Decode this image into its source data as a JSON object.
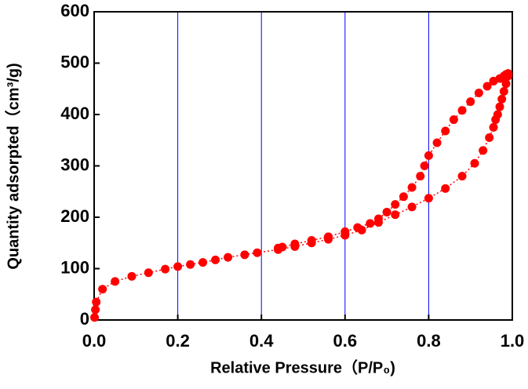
{
  "chart_data": {
    "type": "scatter",
    "xlabel": "Relative Pressure（P/P₀)",
    "ylabel": "Quantity adsorpted（cm³/g)",
    "xlim": [
      0,
      1
    ],
    "ylim": [
      0,
      600
    ],
    "xticks": [
      {
        "value": 0,
        "label": "0.0"
      },
      0.2,
      0.4,
      0.6,
      0.8,
      {
        "value": 1,
        "label": "1.0"
      }
    ],
    "yticks": [
      0,
      100,
      200,
      300,
      400,
      500,
      600
    ],
    "grid": "x",
    "grid_color": "#0000ff",
    "series": [
      {
        "color": "#ff0000",
        "x": [
          0.001,
          0.003,
          0.005,
          0.02,
          0.05,
          0.09,
          0.13,
          0.17,
          0.2,
          0.23,
          0.26,
          0.29,
          0.32,
          0.36,
          0.39,
          0.44,
          0.48,
          0.52,
          0.56,
          0.6,
          0.64,
          0.68,
          0.72,
          0.76,
          0.8,
          0.84,
          0.88,
          0.91,
          0.93,
          0.945,
          0.955,
          0.96,
          0.965,
          0.97,
          0.975,
          0.98,
          0.985,
          0.99
        ],
        "values": [
          5,
          20,
          35,
          60,
          75,
          85,
          92,
          99,
          104,
          108,
          112,
          117,
          122,
          127,
          131,
          137,
          143,
          150,
          157,
          165,
          175,
          190,
          205,
          220,
          237,
          256,
          280,
          305,
          330,
          355,
          375,
          390,
          400,
          415,
          430,
          445,
          460,
          475
        ]
      },
      {
        "color": "#ff0000",
        "x": [
          0.99,
          0.985,
          0.98,
          0.97,
          0.955,
          0.94,
          0.92,
          0.9,
          0.88,
          0.86,
          0.84,
          0.82,
          0.8,
          0.79,
          0.78,
          0.76,
          0.74,
          0.72,
          0.7,
          0.68,
          0.66,
          0.63,
          0.6,
          0.56,
          0.52,
          0.48,
          0.45,
          0.44
        ],
        "values": [
          480,
          478,
          475,
          470,
          465,
          455,
          442,
          425,
          408,
          390,
          368,
          345,
          320,
          300,
          280,
          258,
          240,
          225,
          210,
          197,
          188,
          180,
          172,
          162,
          155,
          148,
          142,
          140
        ]
      }
    ]
  }
}
